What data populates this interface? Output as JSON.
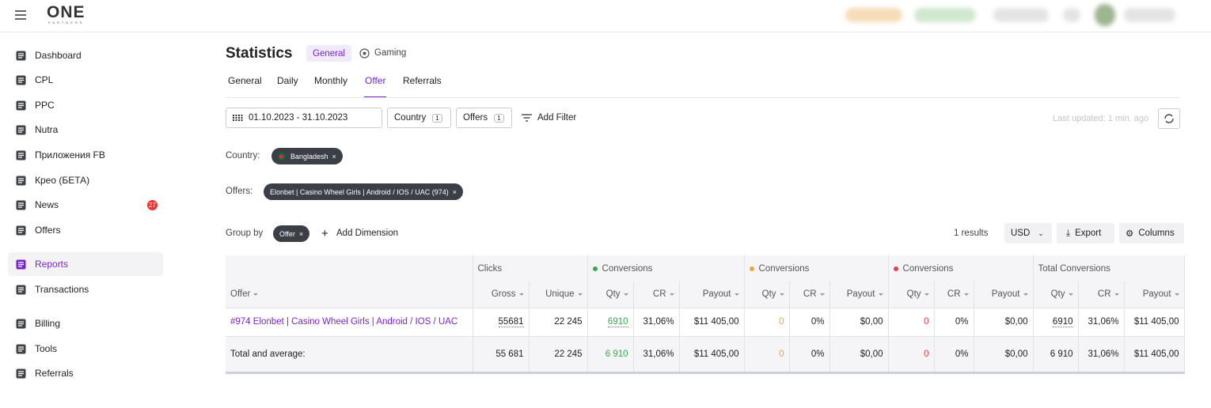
{
  "header": {
    "logo": "ONE",
    "logo_sub": "PARTNERS"
  },
  "sidebar": {
    "items": [
      {
        "label": "Dashboard"
      },
      {
        "label": "CPL"
      },
      {
        "label": "PPC"
      },
      {
        "label": "Nutra"
      },
      {
        "label": "Приложения FB"
      },
      {
        "label": "Крео (БЕТА)"
      },
      {
        "label": "News",
        "badge": "27"
      },
      {
        "label": "Offers"
      },
      {
        "label": "Reports"
      },
      {
        "label": "Transactions"
      },
      {
        "label": "Billing"
      },
      {
        "label": "Tools"
      },
      {
        "label": "Referrals"
      }
    ]
  },
  "page": {
    "title": "Statistics",
    "modes": [
      "General",
      "Gaming"
    ],
    "tabs": [
      "General",
      "Daily",
      "Monthly",
      "Offer",
      "Referrals"
    ]
  },
  "filters": {
    "date_range": "01.10.2023 - 31.10.2023",
    "buttons": [
      {
        "label": "Country",
        "count": "1"
      },
      {
        "label": "Offers",
        "count": "1"
      }
    ],
    "add_filter": "Add Filter",
    "last_updated": "Last updated: 1 min. ago"
  },
  "applied": [
    {
      "label": "Country:",
      "chip": "Bangladesh"
    },
    {
      "label": "Offers:",
      "chip": "Elonbet | Casino Wheel Girls | Android / IOS / UAC (974)"
    }
  ],
  "group_by": {
    "label": "Group by",
    "chip": "Offer",
    "add": "Add Dimension"
  },
  "results": {
    "text": "1 results",
    "currency": "USD",
    "export": "Export",
    "columns": "Columns"
  },
  "table": {
    "groups": [
      {
        "label": "Clicks"
      },
      {
        "label": "Conversions",
        "color": "#3aa655"
      },
      {
        "label": "Conversions",
        "color": "#f0a535"
      },
      {
        "label": "Conversions",
        "color": "#e5404f"
      },
      {
        "label": "Total Conversions"
      }
    ],
    "columns": [
      "Offer",
      "Gross",
      "Unique",
      "Qty",
      "CR",
      "Payout",
      "Qty",
      "CR",
      "Payout",
      "Qty",
      "CR",
      "Payout",
      "Qty",
      "CR",
      "Payout"
    ],
    "rows": [
      [
        "#974 Elonbet | Casino Wheel Girls | Android / IOS / UAC",
        "55681",
        "22 245",
        "6910",
        "31,06%",
        "$11 405,00",
        "0",
        "0%",
        "$0,00",
        "0",
        "0%",
        "$0,00",
        "6910",
        "31,06%",
        "$11 405,00"
      ],
      [
        "Total and average:",
        "55 681",
        "22 245",
        "6 910",
        "31,06%",
        "$11 405,00",
        "0",
        "0%",
        "$0,00",
        "0",
        "0%",
        "$0,00",
        "6 910",
        "31,06%",
        "$11 405,00"
      ]
    ]
  }
}
